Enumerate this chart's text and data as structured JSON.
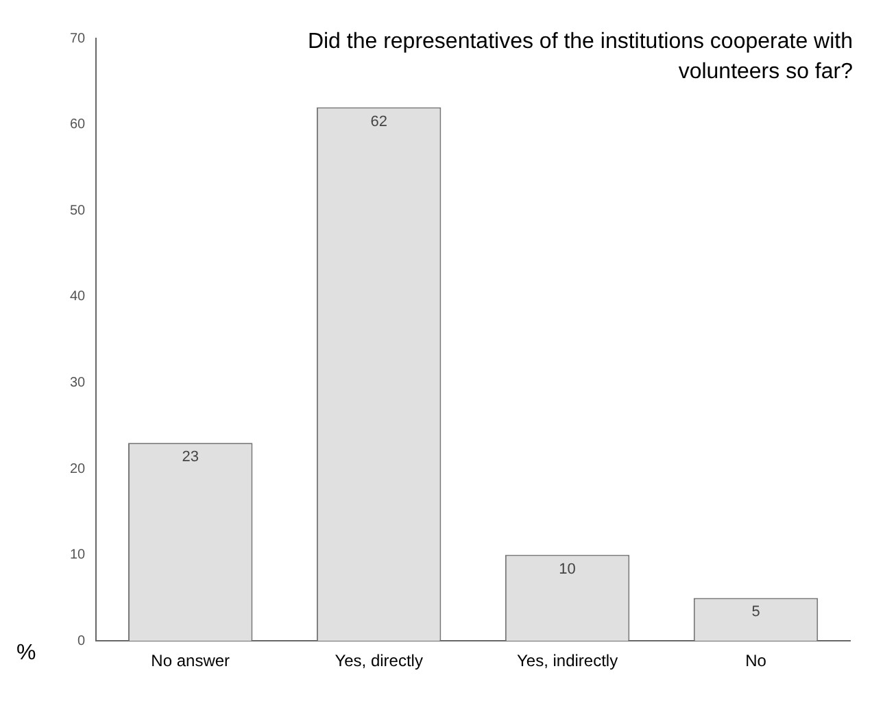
{
  "chart_data": {
    "type": "bar",
    "title": "Did the representatives of the institutions cooperate with volunteers so far?",
    "ylabel": "%",
    "categories": [
      "No answer",
      "Yes, directly",
      "Yes, indirectly",
      "No"
    ],
    "values": [
      23,
      62,
      10,
      5
    ],
    "color": "#e0e0e0",
    "ylim": [
      0,
      70
    ],
    "yticks": [
      0,
      10,
      20,
      30,
      40,
      50,
      60,
      70
    ],
    "grid": false,
    "legend": false,
    "data_labels": true
  }
}
